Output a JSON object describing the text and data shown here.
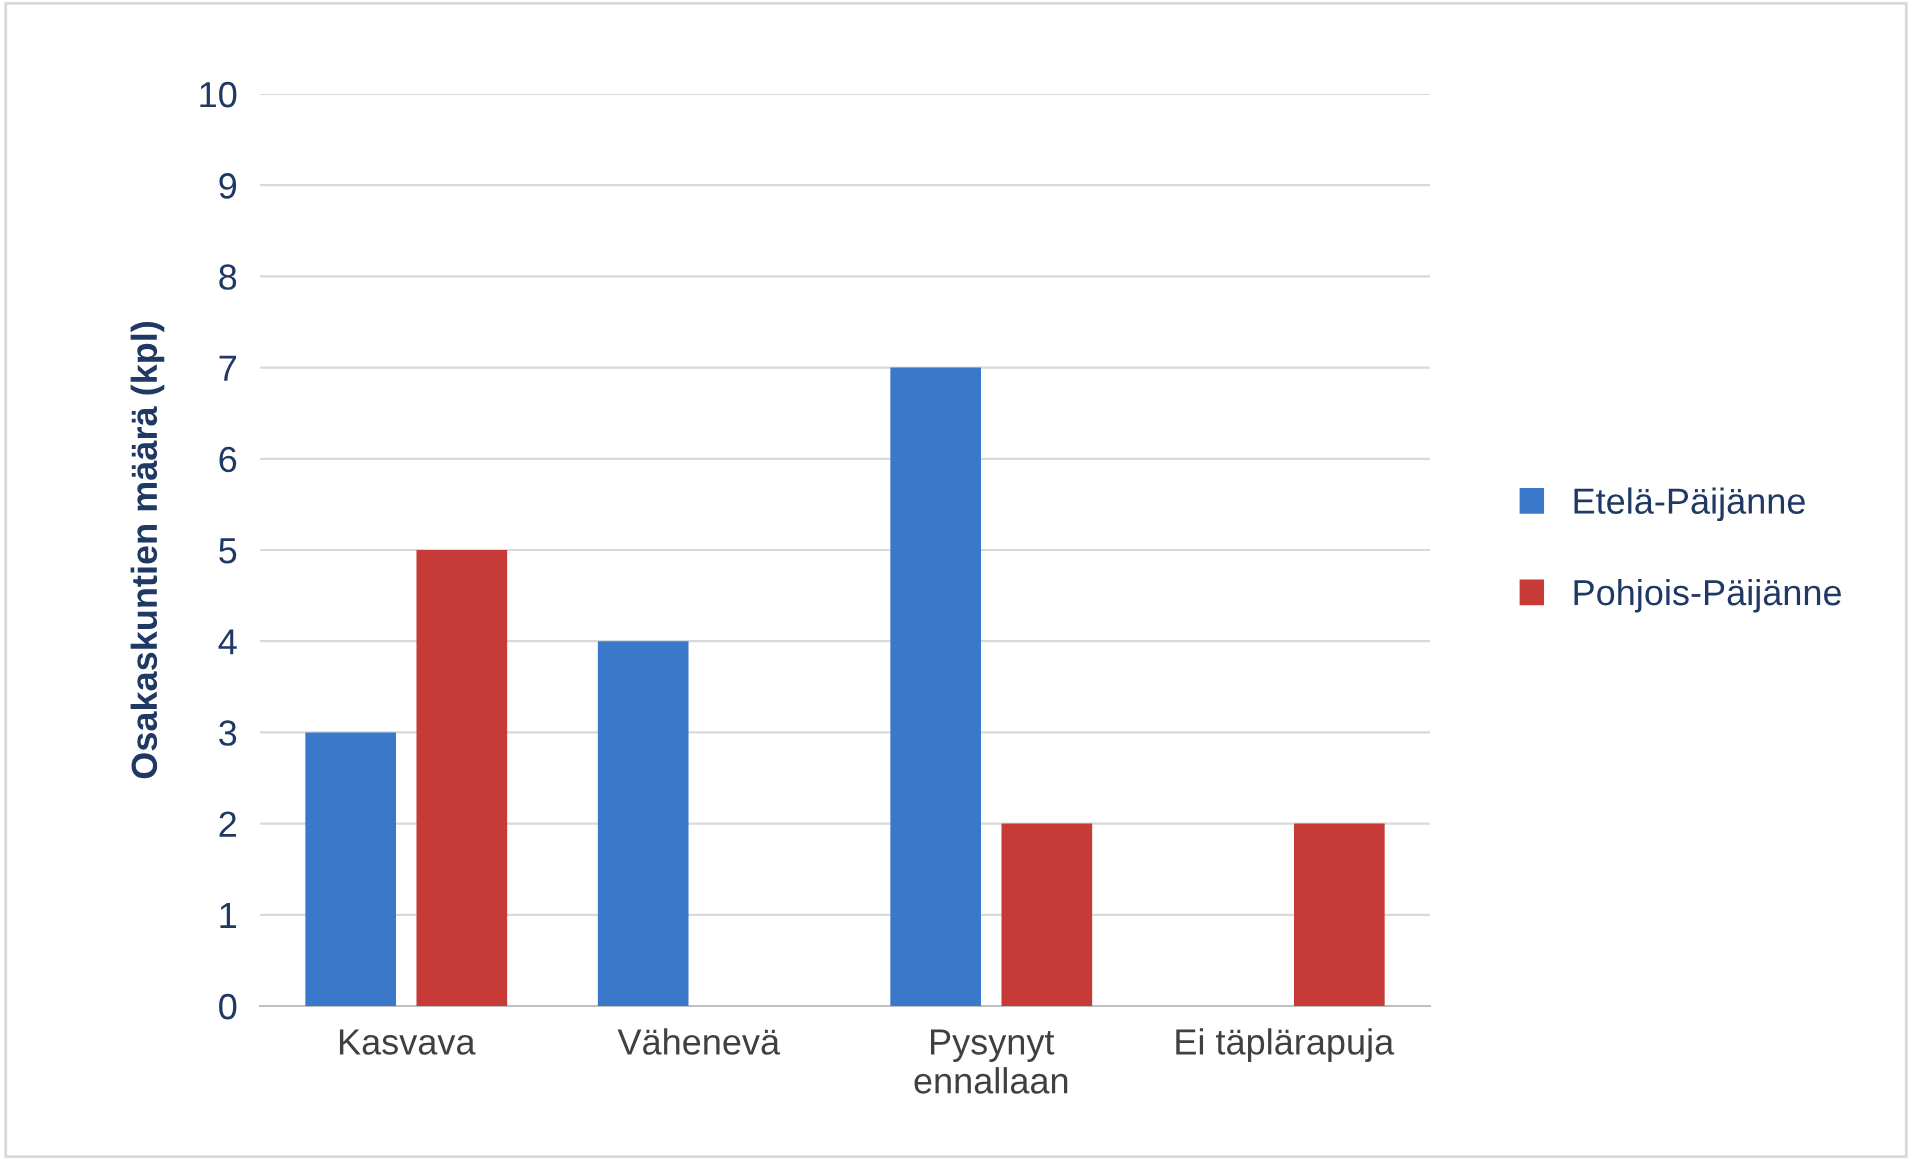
{
  "chart_data": {
    "type": "bar",
    "ylabel": "Osakaskuntien määrä (kpl)",
    "categories": [
      "Kasvava",
      "Vähenevä",
      "Pysynyt\nennallaan",
      "Ei täplärapuja"
    ],
    "series": [
      {
        "name": "Etelä-Päijänne",
        "color": "#3a78c9",
        "values": [
          3,
          4,
          7,
          null
        ]
      },
      {
        "name": "Pohjois-Päijänne",
        "color": "#c63b37",
        "values": [
          5,
          null,
          2,
          2
        ]
      }
    ],
    "ylim": [
      0,
      10
    ],
    "yticks": [
      0,
      1,
      2,
      3,
      4,
      5,
      6,
      7,
      8,
      9,
      10
    ],
    "grid": "y",
    "legend": "right"
  }
}
